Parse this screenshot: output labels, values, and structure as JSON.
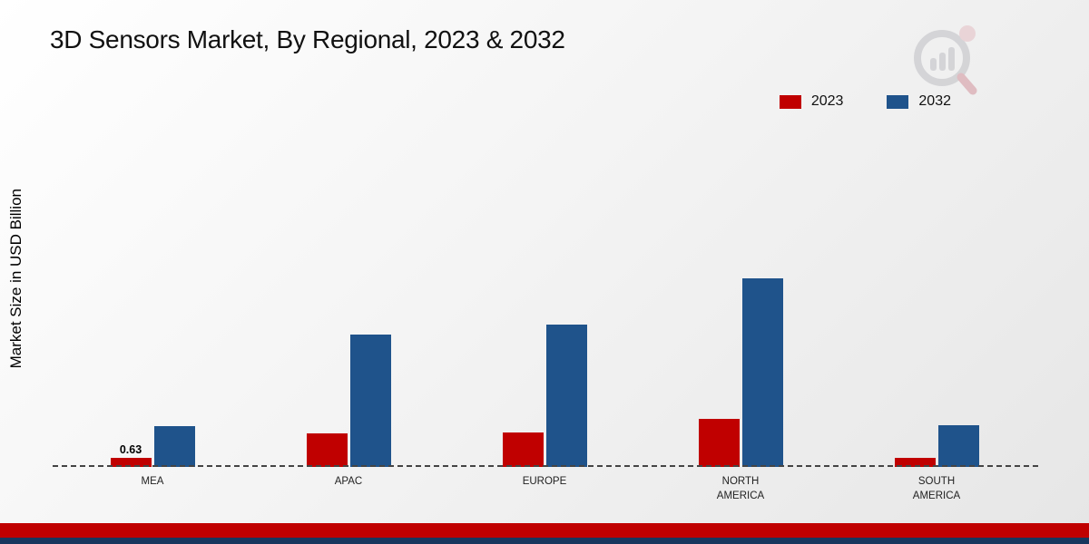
{
  "chart_data": {
    "type": "bar",
    "title": "3D Sensors Market, By Regional, 2023 & 2032",
    "ylabel": "Market Size in USD Billion",
    "xlabel": "",
    "categories": [
      "MEA",
      "APAC",
      "EUROPE",
      "NORTH AMERICA",
      "SOUTH AMERICA"
    ],
    "series": [
      {
        "name": "2023",
        "color": "#c00000",
        "values": [
          0.63,
          2.3,
          2.4,
          3.3,
          0.6
        ]
      },
      {
        "name": "2032",
        "color": "#1f538b",
        "values": [
          2.8,
          9.1,
          9.8,
          13.0,
          2.9
        ]
      }
    ],
    "annotations": [
      {
        "series": "2023",
        "category": "MEA",
        "text": "0.63"
      }
    ],
    "ylim": [
      0,
      14
    ],
    "grid": false,
    "legend_position": "top-right",
    "baseline_style": "dashed"
  },
  "footer": {
    "red_color": "#c00000",
    "navy_color": "#17375e"
  }
}
